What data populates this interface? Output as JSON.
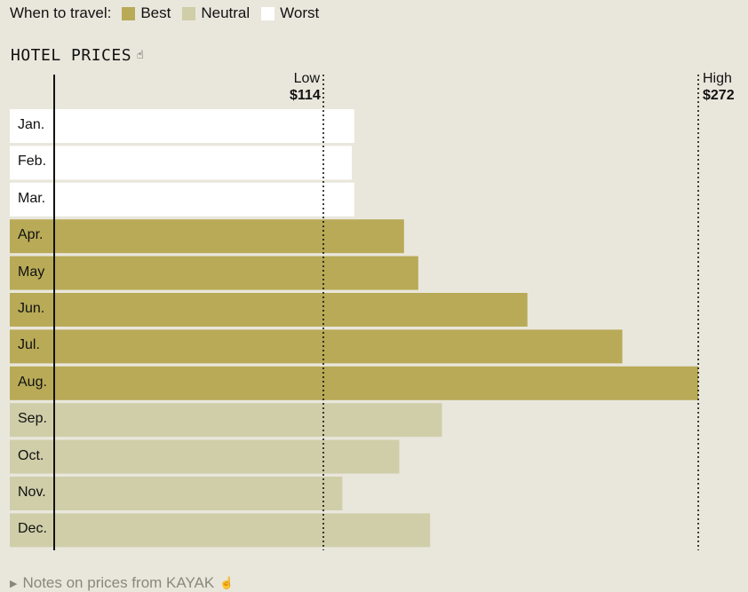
{
  "legend": {
    "lead": "When to travel:",
    "items": [
      {
        "label": "Best",
        "color": "#b8aa57"
      },
      {
        "label": "Neutral",
        "color": "#cfcea9"
      },
      {
        "label": "Worst",
        "color": "#ffffff"
      }
    ]
  },
  "title": "HOTEL PRICES",
  "title_icon": "pointer-hand-icon",
  "notes": {
    "label": "Notes on prices from KAYAK",
    "expand_icon": "triangle-right-icon",
    "hand_icon": "pointer-hand-icon"
  },
  "chart_data": {
    "type": "bar",
    "orientation": "horizontal",
    "title": "HOTEL PRICES",
    "categories": [
      "Jan.",
      "Feb.",
      "Mar.",
      "Apr.",
      "May",
      "Jun.",
      "Jul.",
      "Aug.",
      "Sep.",
      "Oct.",
      "Nov.",
      "Dec."
    ],
    "values": [
      127,
      126,
      127,
      148,
      154,
      200,
      240,
      272,
      164,
      146,
      122,
      159
    ],
    "ratings": [
      "Worst",
      "Worst",
      "Worst",
      "Best",
      "Best",
      "Best",
      "Best",
      "Best",
      "Neutral",
      "Neutral",
      "Neutral",
      "Neutral"
    ],
    "reference_lines": [
      {
        "label": "Low",
        "value_label": "$114",
        "value": 114
      },
      {
        "label": "High",
        "value_label": "$272",
        "value": 272
      }
    ],
    "xlim": [
      0,
      272
    ],
    "grid": false,
    "legend_position": "top-left"
  }
}
